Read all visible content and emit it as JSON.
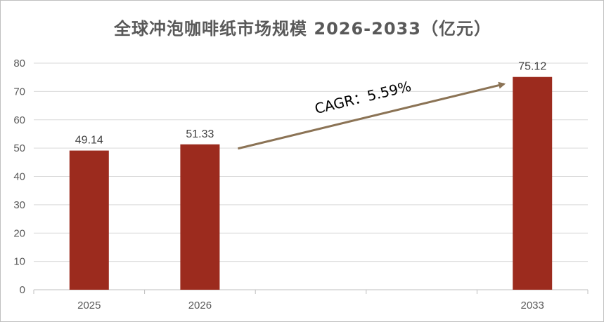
{
  "chart_data": {
    "type": "bar",
    "title": "全球冲泡咖啡纸市场规模 2026-2033（亿元）",
    "categories": [
      "2025",
      "2026",
      "",
      "",
      "2033"
    ],
    "values": [
      49.14,
      51.33,
      null,
      null,
      75.12
    ],
    "data_labels": [
      "49.14",
      "51.33",
      "",
      "",
      "75.12"
    ],
    "ylim": [
      0,
      80
    ],
    "yticks": [
      "0",
      "10",
      "20",
      "30",
      "40",
      "50",
      "60",
      "70",
      "80"
    ],
    "xlabel": "",
    "ylabel": "",
    "grid": true,
    "legend": "none",
    "bar_color": "#9c2b1e",
    "annotation": {
      "text": "CAGR：5.59%",
      "arrow_color": "#8b7355",
      "from_category": "2026",
      "to_category": "2033"
    }
  }
}
